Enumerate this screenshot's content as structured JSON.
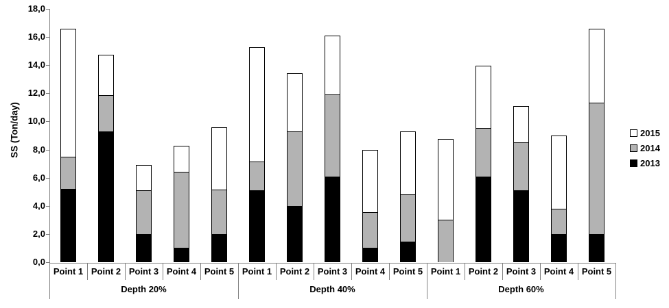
{
  "chart_data": {
    "type": "bar",
    "stacked": true,
    "title": "",
    "ylabel": "SS (Ton/day)",
    "xlabel": "",
    "ylim": [
      0,
      18
    ],
    "ytick_step": 2,
    "ytick_labels": [
      "0,0",
      "2,0",
      "4,0",
      "6,0",
      "8,0",
      "10,0",
      "12,0",
      "14,0",
      "16,0",
      "18,0"
    ],
    "grid": false,
    "groups": [
      "Depth 20%",
      "Depth 40%",
      "Depth 60%"
    ],
    "categories": [
      "Point 1",
      "Point 2",
      "Point 3",
      "Point 4",
      "Point 5"
    ],
    "series": [
      {
        "name": "2013",
        "color": "#000000",
        "values": [
          [
            5.2,
            9.3,
            2.0,
            1.0,
            2.0
          ],
          [
            5.1,
            4.0,
            6.1,
            1.0,
            1.45
          ],
          [
            0,
            6.1,
            5.1,
            2.0,
            2.0
          ]
        ]
      },
      {
        "name": "2014",
        "color": "#b3b3b3",
        "values": [
          [
            2.3,
            2.55,
            3.1,
            5.4,
            3.15
          ],
          [
            2.05,
            5.3,
            5.8,
            2.55,
            3.35
          ],
          [
            3.0,
            3.45,
            3.4,
            1.8,
            9.35
          ]
        ]
      },
      {
        "name": "2015",
        "color": "#ffffff",
        "values": [
          [
            9.1,
            2.9,
            1.8,
            1.85,
            4.45
          ],
          [
            8.15,
            4.15,
            4.2,
            4.45,
            4.5
          ],
          [
            5.75,
            4.4,
            2.6,
            5.2,
            5.25
          ]
        ]
      }
    ],
    "bar_totals": [
      [
        16.6,
        14.75,
        6.9,
        8.25,
        9.6
      ],
      [
        15.3,
        13.45,
        16.1,
        8.0,
        9.3
      ],
      [
        8.75,
        13.95,
        11.1,
        9.0,
        16.6
      ]
    ],
    "legend_position": "right",
    "legend": [
      {
        "label": "2015",
        "color": "#ffffff"
      },
      {
        "label": "2014",
        "color": "#b3b3b3"
      },
      {
        "label": "2013",
        "color": "#000000"
      }
    ],
    "axis_color": "#808080",
    "bar_border_color": "#000000"
  }
}
